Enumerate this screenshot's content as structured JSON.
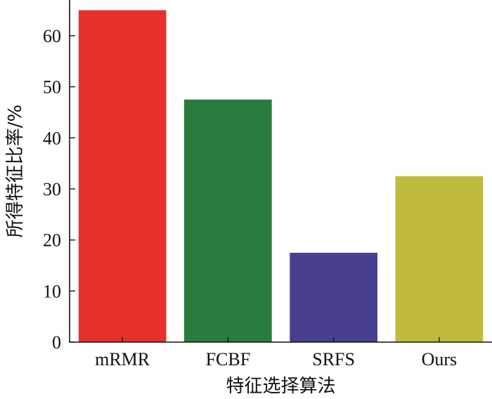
{
  "chart_data": {
    "type": "bar",
    "categories": [
      "mRMR",
      "FCBF",
      "SRFS",
      "Ours"
    ],
    "values": [
      65,
      47.5,
      17.5,
      32.5
    ],
    "colors": [
      "#e8312b",
      "#2a7c3c",
      "#473f8f",
      "#bfbb3d"
    ],
    "title": "",
    "xlabel": "特征选择算法",
    "ylabel": "所得特征比率/%",
    "ylim": [
      0,
      67
    ],
    "yticks": [
      0,
      10,
      20,
      30,
      40,
      50,
      60
    ],
    "grid": false
  }
}
